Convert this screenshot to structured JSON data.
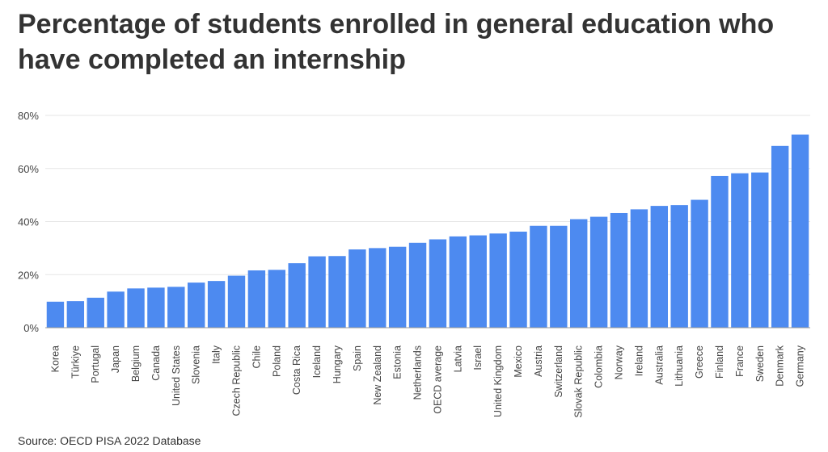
{
  "title": "Percentage of students enrolled in general education who have completed an internship",
  "source": "Source: OECD PISA 2022 Database",
  "colors": {
    "bar": "#4d8af0",
    "grid": "#e6e6e6",
    "text": "#333333",
    "tick": "#444444"
  },
  "chart_data": {
    "type": "bar",
    "title": "Percentage of students enrolled in general education who have completed an internship",
    "xlabel": "",
    "ylabel": "",
    "ylim": [
      0,
      80
    ],
    "yticks": [
      0,
      20,
      40,
      60,
      80
    ],
    "ytick_labels": [
      "0%",
      "20%",
      "40%",
      "60%",
      "80%"
    ],
    "grid": true,
    "categories": [
      "Korea",
      "Türkiye",
      "Portugal",
      "Japan",
      "Belgium",
      "Canada",
      "United States",
      "Slovenia",
      "Italy",
      "Czech Republic",
      "Chile",
      "Poland",
      "Costa Rica",
      "Iceland",
      "Hungary",
      "Spain",
      "New Zealand",
      "Estonia",
      "Netherlands",
      "OECD average",
      "Latvia",
      "Israel",
      "United Kingdom",
      "Mexico",
      "Austria",
      "Switzerland",
      "Slovak Republic",
      "Colombia",
      "Norway",
      "Ireland",
      "Australia",
      "Lithuania",
      "Greece",
      "Finland",
      "France",
      "Sweden",
      "Denmark",
      "Germany"
    ],
    "values": [
      9.8,
      10.0,
      11.3,
      13.6,
      14.8,
      15.1,
      15.4,
      17.0,
      17.6,
      19.6,
      21.6,
      21.8,
      24.3,
      26.9,
      27.0,
      29.5,
      30.0,
      30.5,
      32.0,
      33.3,
      34.4,
      34.8,
      35.5,
      36.2,
      38.4,
      38.4,
      40.9,
      41.8,
      43.2,
      44.6,
      45.9,
      46.2,
      48.2,
      57.2,
      58.2,
      58.5,
      68.5,
      72.8
    ]
  }
}
